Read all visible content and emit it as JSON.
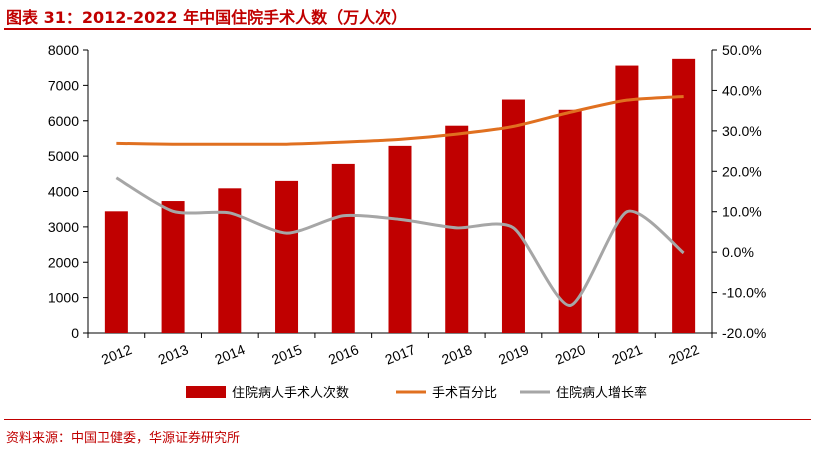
{
  "header": {
    "title": "图表 31：2012-2022 年中国住院手术人数（万人次）"
  },
  "source": {
    "text": "资料来源：中国卫健委，华源证券研究所"
  },
  "colors": {
    "accent": "#c00000",
    "bar": "#c00000",
    "surgery_pct_line": "#e07020",
    "growth_line": "#a6a6a6"
  },
  "chart_data": {
    "type": "bar",
    "categories": [
      "2012",
      "2013",
      "2014",
      "2015",
      "2016",
      "2017",
      "2018",
      "2019",
      "2020",
      "2021",
      "2022"
    ],
    "series": [
      {
        "name": "住院病人手术人次数",
        "type": "bar",
        "axis": "left",
        "values": [
          3440,
          3730,
          4090,
          4300,
          4780,
          5290,
          5860,
          6600,
          6310,
          7560,
          7750
        ]
      },
      {
        "name": "手术百分比",
        "type": "line",
        "axis": "right",
        "values": [
          0.269,
          0.267,
          0.267,
          0.267,
          0.272,
          0.279,
          0.292,
          0.311,
          0.346,
          0.376,
          0.385
        ]
      },
      {
        "name": "住院病人增长率",
        "type": "line",
        "axis": "right",
        "values": [
          0.184,
          0.101,
          0.097,
          0.047,
          0.09,
          0.081,
          0.06,
          0.06,
          -0.132,
          0.1,
          -0.002
        ]
      }
    ],
    "yleft": {
      "lim": [
        0,
        8000
      ],
      "ticks": [
        0,
        1000,
        2000,
        3000,
        4000,
        5000,
        6000,
        7000,
        8000
      ],
      "tick_labels": [
        "0",
        "1000",
        "2000",
        "3000",
        "4000",
        "5000",
        "6000",
        "7000",
        "8000"
      ]
    },
    "yright": {
      "lim": [
        -0.2,
        0.5
      ],
      "ticks": [
        -0.2,
        -0.1,
        0,
        0.1,
        0.2,
        0.3,
        0.4,
        0.5
      ],
      "tick_labels": [
        "-20.0%",
        "-10.0%",
        "0.0%",
        "10.0%",
        "20.0%",
        "30.0%",
        "40.0%",
        "50.0%"
      ]
    },
    "legend": {
      "position": "bottom"
    },
    "grid": false
  }
}
